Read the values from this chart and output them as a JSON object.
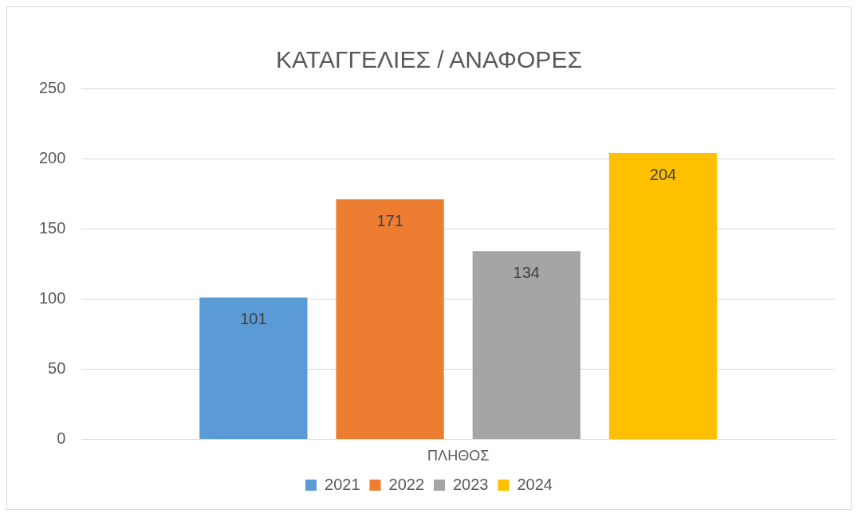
{
  "chart_data": {
    "type": "bar",
    "title": "ΚΑΤΑΓΓΕΛΙΕΣ / ΑΝΑΦΟΡΕΣ",
    "categories": [
      "ΠΛΗΘΟΣ"
    ],
    "series": [
      {
        "name": "2021",
        "color": "#5b9bd5",
        "values": [
          101
        ]
      },
      {
        "name": "2022",
        "color": "#ed7d31",
        "values": [
          171
        ]
      },
      {
        "name": "2023",
        "color": "#a5a5a5",
        "values": [
          134
        ]
      },
      {
        "name": "2024",
        "color": "#ffc000",
        "values": [
          204
        ]
      }
    ],
    "ylim": [
      0,
      250
    ],
    "yticks": [
      0,
      50,
      100,
      150,
      200,
      250
    ],
    "grid": "y",
    "legend": "bottom",
    "data_labels": true
  }
}
